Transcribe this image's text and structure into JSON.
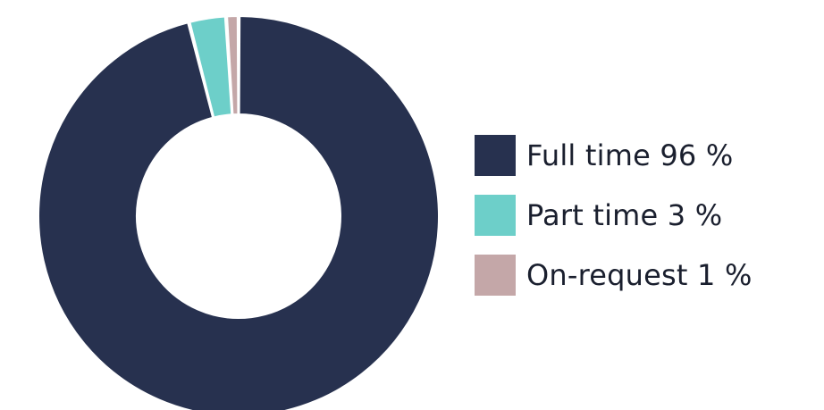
{
  "chart_data": {
    "type": "pie",
    "variant": "donut",
    "title": "",
    "categories": [
      "Full time",
      "Part time",
      "On-request"
    ],
    "values": [
      96,
      3,
      1
    ],
    "unit": "%",
    "colors": [
      "#27314f",
      "#6dcfc9",
      "#c4a7a8"
    ],
    "legend_position": "right",
    "legend": [
      {
        "label": "Full time 96 %",
        "color": "#27314f"
      },
      {
        "label": "Part time 3 %",
        "color": "#6dcfc9"
      },
      {
        "label": "On-request 1 %",
        "color": "#c4a7a8"
      }
    ]
  }
}
